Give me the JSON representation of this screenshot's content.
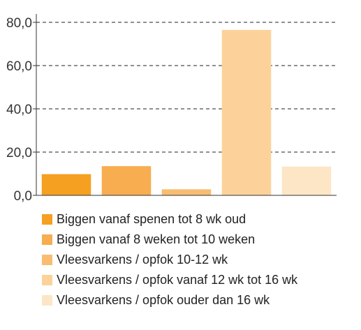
{
  "chart_data": {
    "type": "bar",
    "categories": [
      "Biggen vanaf spenen tot 8 wk oud",
      "Biggen vanaf 8 weken tot 10 weken",
      "Vleesvarkens / opfok 10-12 wk",
      "Vleesvarkens / opfok vanaf 12 wk tot 16 wk",
      "Vleesvarkens / opfok ouder dan 16 wk"
    ],
    "values": [
      9.8,
      13.5,
      2.8,
      76.5,
      13.3
    ],
    "colors": [
      "#f5a020",
      "#f7ad50",
      "#f8bd70",
      "#fcd29a",
      "#fde6c6"
    ],
    "ylim": [
      0,
      80
    ],
    "yticks": [
      "0,0",
      "20,0",
      "40,0",
      "60,0",
      "80,0"
    ],
    "ytick_values": [
      0,
      20,
      40,
      60,
      80
    ],
    "grid": true,
    "grid_style": "dashed",
    "legend_position": "bottom",
    "title": "",
    "xlabel": "",
    "ylabel": ""
  }
}
